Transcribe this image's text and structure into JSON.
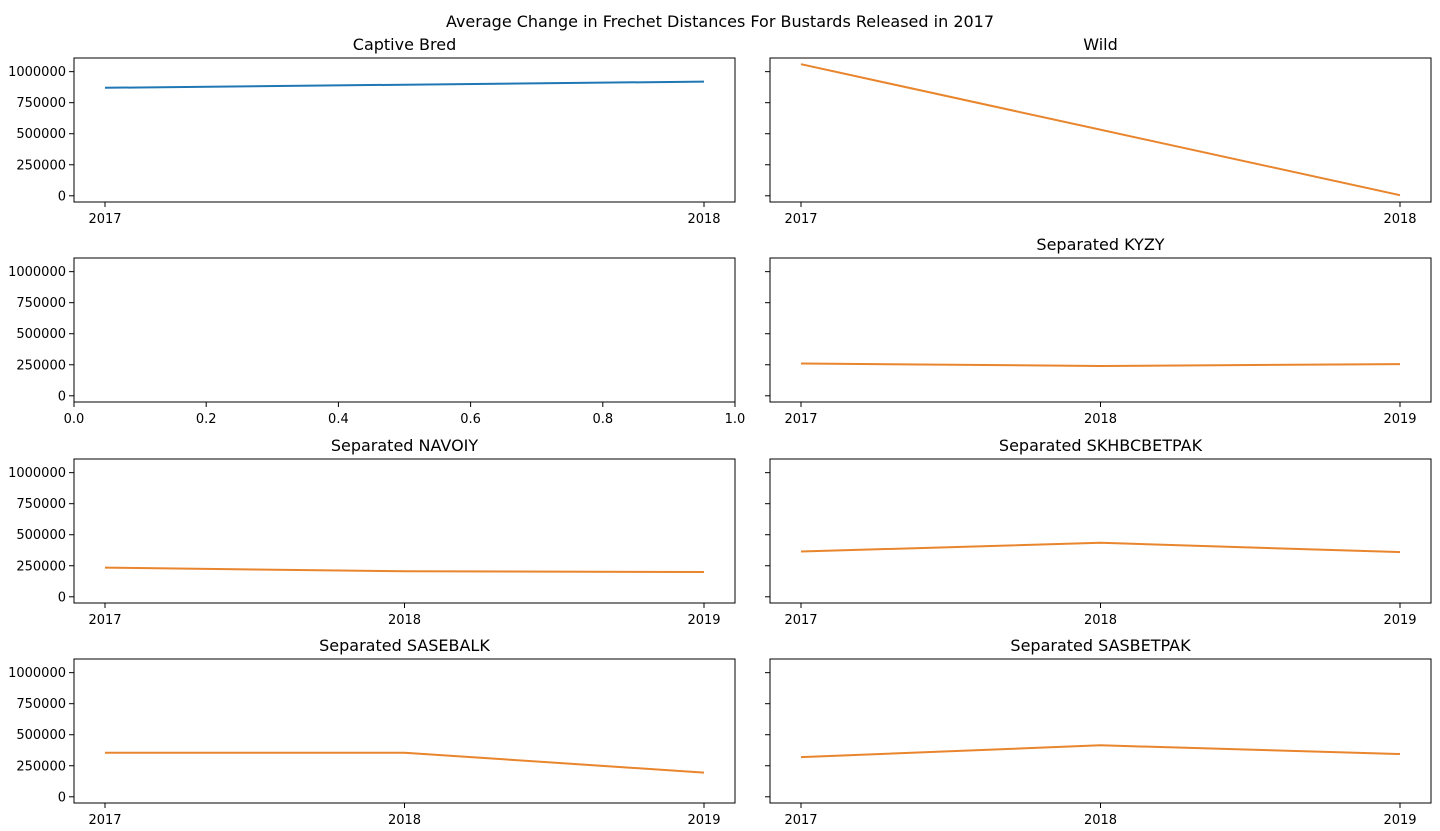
{
  "figure": {
    "title": "Average Change in Frechet Distances For Bustards Released in 2017",
    "background": "#ffffff",
    "line_color_blue": "#1f77b4",
    "line_color_orange": "#e8852d"
  },
  "chart_data": [
    {
      "type": "line",
      "title": "Captive Bred",
      "categories": [
        "2017",
        "2018"
      ],
      "series": [
        {
          "values": [
            870000,
            920000
          ],
          "color": "#1f77b4"
        }
      ],
      "xlabel": "",
      "ylabel": "",
      "ylim": [
        -50000,
        1110000
      ],
      "yticks": [
        "0",
        "250000",
        "500000",
        "750000",
        "1000000"
      ],
      "show_ytick_labels": true
    },
    {
      "type": "line",
      "title": "Wild",
      "categories": [
        "2017",
        "2018"
      ],
      "series": [
        {
          "values": [
            1060000,
            5000
          ],
          "color": "#e8852d"
        }
      ],
      "xlabel": "",
      "ylabel": "",
      "ylim": [
        -50000,
        1110000
      ],
      "yticks": [
        "0",
        "250000",
        "500000",
        "750000",
        "1000000"
      ],
      "show_ytick_labels": false
    },
    {
      "type": "line",
      "title": "",
      "categories": [
        "0.0",
        "0.2",
        "0.4",
        "0.6",
        "0.8",
        "1.0"
      ],
      "series": [],
      "empty": true,
      "xlim": [
        0,
        1
      ],
      "xlabel": "",
      "ylabel": "",
      "ylim": [
        -50000,
        1110000
      ],
      "yticks": [
        "0",
        "250000",
        "500000",
        "750000",
        "1000000"
      ],
      "show_ytick_labels": true
    },
    {
      "type": "line",
      "title": "Separated KYZY",
      "categories": [
        "2017",
        "2018",
        "2019"
      ],
      "series": [
        {
          "values": [
            260000,
            240000,
            255000
          ],
          "color": "#e8852d"
        }
      ],
      "xlabel": "",
      "ylabel": "",
      "ylim": [
        -50000,
        1110000
      ],
      "yticks": [
        "0",
        "250000",
        "500000",
        "750000",
        "1000000"
      ],
      "show_ytick_labels": false
    },
    {
      "type": "line",
      "title": "Separated NAVOIY",
      "categories": [
        "2017",
        "2018",
        "2019"
      ],
      "series": [
        {
          "values": [
            235000,
            205000,
            200000
          ],
          "color": "#e8852d"
        }
      ],
      "xlabel": "",
      "ylabel": "",
      "ylim": [
        -50000,
        1110000
      ],
      "yticks": [
        "0",
        "250000",
        "500000",
        "750000",
        "1000000"
      ],
      "show_ytick_labels": true
    },
    {
      "type": "line",
      "title": "Separated SKHBCBETPAK",
      "categories": [
        "2017",
        "2018",
        "2019"
      ],
      "series": [
        {
          "values": [
            365000,
            435000,
            360000
          ],
          "color": "#e8852d"
        }
      ],
      "xlabel": "",
      "ylabel": "",
      "ylim": [
        -50000,
        1110000
      ],
      "yticks": [
        "0",
        "250000",
        "500000",
        "750000",
        "1000000"
      ],
      "show_ytick_labels": false
    },
    {
      "type": "line",
      "title": "Separated SASEBALK",
      "categories": [
        "2017",
        "2018",
        "2019"
      ],
      "series": [
        {
          "values": [
            355000,
            355000,
            195000
          ],
          "color": "#e8852d"
        }
      ],
      "xlabel": "",
      "ylabel": "",
      "ylim": [
        -50000,
        1110000
      ],
      "yticks": [
        "0",
        "250000",
        "500000",
        "750000",
        "1000000"
      ],
      "show_ytick_labels": true
    },
    {
      "type": "line",
      "title": "Separated SASBETPAK",
      "categories": [
        "2017",
        "2018",
        "2019"
      ],
      "series": [
        {
          "values": [
            320000,
            415000,
            345000
          ],
          "color": "#e8852d"
        }
      ],
      "xlabel": "",
      "ylabel": "",
      "ylim": [
        -50000,
        1110000
      ],
      "yticks": [
        "0",
        "250000",
        "500000",
        "750000",
        "1000000"
      ],
      "show_ytick_labels": false
    }
  ]
}
